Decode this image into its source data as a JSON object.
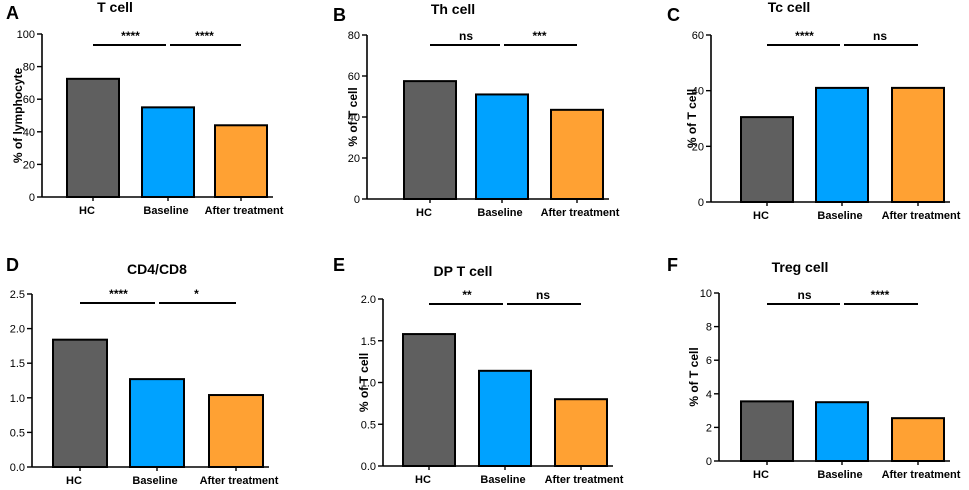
{
  "colors": {
    "hc": "#5f5f5f",
    "baseline": "#00a2ff",
    "after": "#ffa133",
    "stroke": "#000000"
  },
  "chart_data": [
    {
      "letter": "A",
      "type": "bar",
      "title": "T cell",
      "ylabel": "% of lymphocyte",
      "categories": [
        "HC",
        "Baseline",
        "After treatment"
      ],
      "values": [
        72.5,
        55,
        44
      ],
      "ylim": [
        0,
        100
      ],
      "yticks": [
        "0",
        "20",
        "40",
        "60",
        "80",
        "100"
      ],
      "sig": [
        "****",
        "****"
      ]
    },
    {
      "letter": "B",
      "type": "bar",
      "title": "Th cell",
      "ylabel": "% of T cell",
      "categories": [
        "HC",
        "Baseline",
        "After treatment"
      ],
      "values": [
        57.5,
        51,
        43.5
      ],
      "ylim": [
        0,
        80
      ],
      "yticks": [
        "0",
        "20",
        "40",
        "60",
        "80"
      ],
      "sig": [
        "ns",
        "***"
      ]
    },
    {
      "letter": "C",
      "type": "bar",
      "title": "Tc cell",
      "ylabel": "% of T cell",
      "categories": [
        "HC",
        "Baseline",
        "After treatment"
      ],
      "values": [
        30.5,
        41,
        41
      ],
      "ylim": [
        0,
        60
      ],
      "yticks": [
        "0",
        "20",
        "40",
        "60"
      ],
      "sig": [
        "****",
        "ns"
      ]
    },
    {
      "letter": "D",
      "type": "bar",
      "title": "CD4/CD8",
      "ylabel": "",
      "categories": [
        "HC",
        "Baseline",
        "After treatment"
      ],
      "values": [
        1.84,
        1.27,
        1.04
      ],
      "ylim": [
        0,
        2.5
      ],
      "yticks": [
        "0.0",
        "0.5",
        "1.0",
        "1.5",
        "2.0",
        "2.5"
      ],
      "sig": [
        "****",
        "*"
      ]
    },
    {
      "letter": "E",
      "type": "bar",
      "title": "DP T cell",
      "ylabel": "% of T cell",
      "categories": [
        "HC",
        "Baseline",
        "After treatment"
      ],
      "values": [
        1.58,
        1.14,
        0.8
      ],
      "ylim": [
        0,
        2.0
      ],
      "yticks": [
        "0.0",
        "0.5",
        "1.0",
        "1.5",
        "2.0"
      ],
      "sig": [
        "**",
        "ns"
      ]
    },
    {
      "letter": "F",
      "type": "bar",
      "title": "Treg cell",
      "ylabel": "% of T cell",
      "categories": [
        "HC",
        "Baseline",
        "After treatment"
      ],
      "values": [
        3.55,
        3.5,
        2.55
      ],
      "ylim": [
        0,
        10
      ],
      "yticks": [
        "0",
        "2",
        "4",
        "6",
        "8",
        "10"
      ],
      "sig": [
        "ns",
        "****"
      ]
    }
  ]
}
